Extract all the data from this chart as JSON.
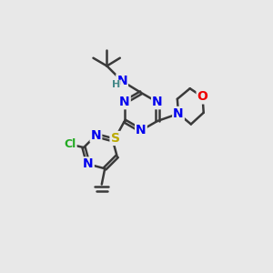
{
  "bg_color": "#e8e8e8",
  "bond_color": "#3a3a3a",
  "bond_width": 1.8,
  "atom_colors": {
    "N": "#0000ee",
    "O": "#ee0000",
    "S": "#bbaa00",
    "Cl": "#22aa22",
    "H": "#448888"
  },
  "font_size": 10,
  "font_size_h": 8,
  "font_size_cl": 9
}
